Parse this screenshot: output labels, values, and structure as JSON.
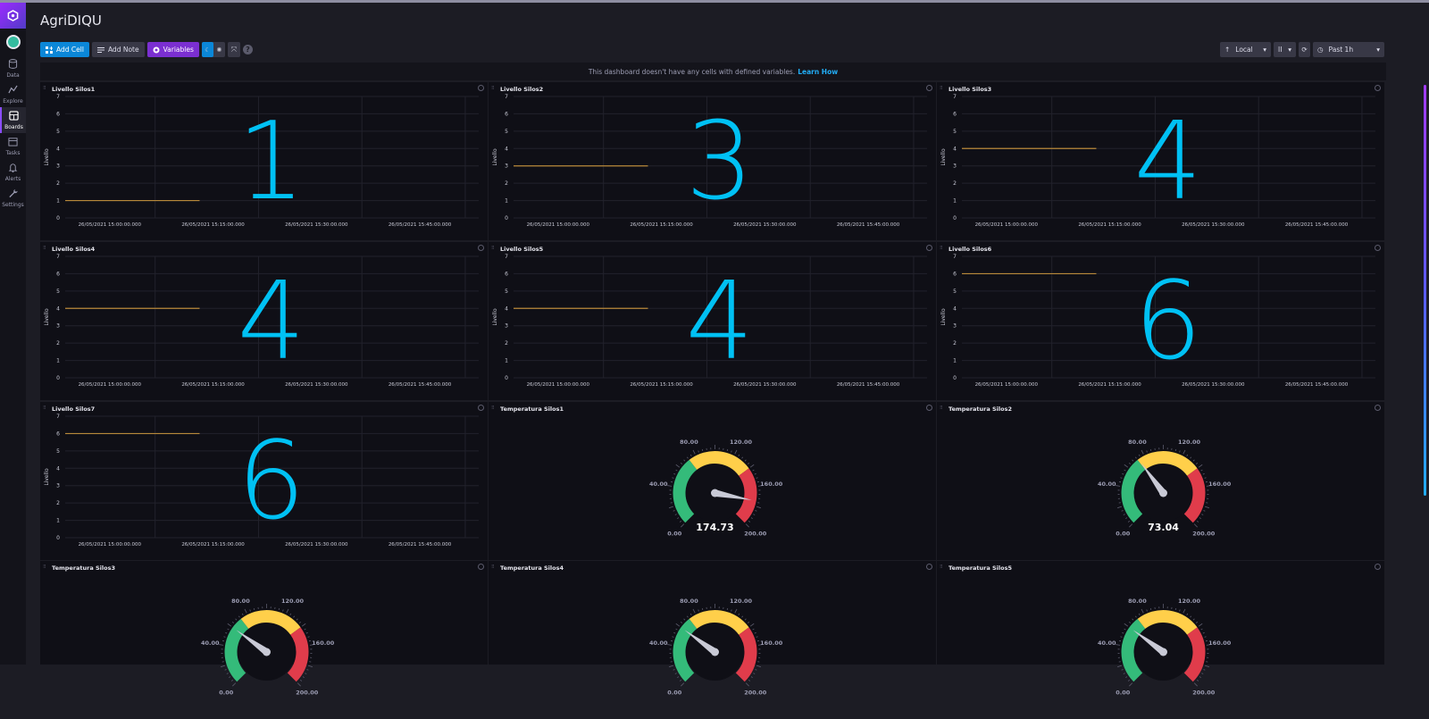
{
  "app": {
    "title": "AgriDIQU"
  },
  "nav": {
    "items": [
      {
        "key": "data",
        "label": "Data",
        "icon": "database-icon",
        "active": false
      },
      {
        "key": "explore",
        "label": "Explore",
        "icon": "graph-icon",
        "active": false
      },
      {
        "key": "boards",
        "label": "Boards",
        "icon": "dashboard-icon",
        "active": true
      },
      {
        "key": "tasks",
        "label": "Tasks",
        "icon": "calendar-icon",
        "active": false
      },
      {
        "key": "alerts",
        "label": "Alerts",
        "icon": "bell-icon",
        "active": false
      },
      {
        "key": "settings",
        "label": "Settings",
        "icon": "wrench-icon",
        "active": false
      }
    ]
  },
  "toolbar": {
    "add_cell": "Add Cell",
    "add_note": "Add Note",
    "variables": "Variables",
    "timezone": "Local",
    "refresh": "II",
    "range": "Past 1h"
  },
  "banner": {
    "text": "This dashboard doesn't have any cells with defined variables.",
    "link": "Learn How"
  },
  "colors": {
    "accent": "#0b87d8",
    "purple": "#7b2fd1",
    "annotation": "#00c1f4",
    "line": "#b8893a"
  },
  "cells": [
    {
      "title": "Livello Silos1",
      "type": "line",
      "value": 1,
      "annotation": "1"
    },
    {
      "title": "Livello Silos2",
      "type": "line",
      "value": 3,
      "annotation": "3"
    },
    {
      "title": "Livello Silos3",
      "type": "line",
      "value": 4,
      "annotation": "4"
    },
    {
      "title": "Livello Silos4",
      "type": "line",
      "value": 4,
      "annotation": "4"
    },
    {
      "title": "Livello Silos5",
      "type": "line",
      "value": 4,
      "annotation": "4"
    },
    {
      "title": "Livello Silos6",
      "type": "line",
      "value": 6,
      "annotation": "6"
    },
    {
      "title": "Livello Silos7",
      "type": "line",
      "value": 6,
      "annotation": "6"
    },
    {
      "title": "Temperatura Silos1",
      "type": "gauge",
      "value": 174.73,
      "display": "174.73"
    },
    {
      "title": "Temperatura Silos2",
      "type": "gauge",
      "value": 73.04,
      "display": "73.04"
    },
    {
      "title": "Temperatura Silos3",
      "type": "gauge",
      "value": 60,
      "display": ""
    },
    {
      "title": "Temperatura Silos4",
      "type": "gauge",
      "value": 60,
      "display": ""
    },
    {
      "title": "Temperatura Silos5",
      "type": "gauge",
      "value": 60,
      "display": ""
    }
  ],
  "line_chart": {
    "ylabel": "Livello",
    "yticks": [
      "0",
      "1",
      "2",
      "3",
      "4",
      "5",
      "6",
      "7"
    ],
    "xticks": [
      "26/05/2021 15:00:00.000",
      "26/05/2021 15:15:00.000",
      "26/05/2021 15:30:00.000",
      "26/05/2021 15:45:00.000"
    ]
  },
  "gauge": {
    "ticks": [
      "0.00",
      "40.00",
      "80.00",
      "120.00",
      "160.00",
      "200.00"
    ],
    "min": 0,
    "max": 200
  }
}
